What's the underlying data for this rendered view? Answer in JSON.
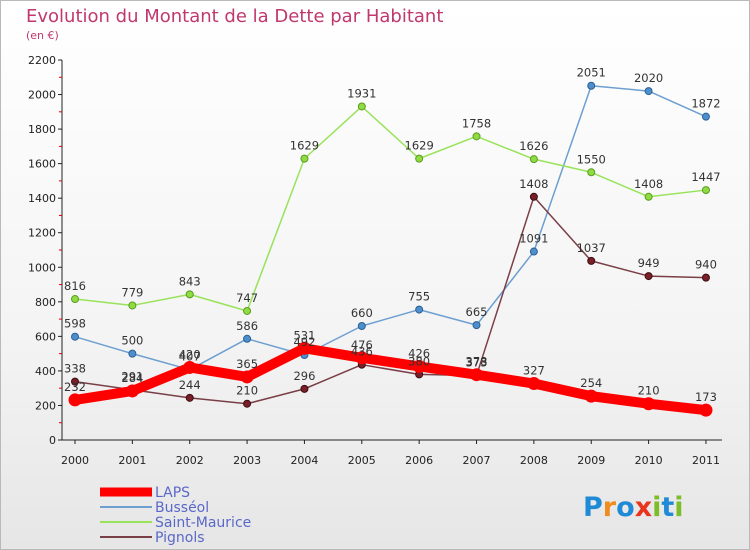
{
  "chart_data": {
    "type": "line",
    "title": "Evolution du Montant de la Dette par Habitant",
    "subtitle": "(en €)",
    "x": [
      "2000",
      "2001",
      "2002",
      "2003",
      "2004",
      "2005",
      "2006",
      "2007",
      "2008",
      "2009",
      "2010",
      "2011"
    ],
    "ylim": [
      0,
      2200
    ],
    "yticks": [
      0,
      200,
      400,
      600,
      800,
      1000,
      1200,
      1400,
      1600,
      1800,
      2000,
      2200
    ],
    "grid": false,
    "legend_position": "bottom-left",
    "series": [
      {
        "name": "LAPS",
        "color": "#ff0000",
        "values": [
          232,
          284,
          420,
          365,
          531,
          476,
          426,
          378,
          327,
          254,
          210,
          173
        ]
      },
      {
        "name": "Busséol",
        "color": "#4d8fcc",
        "values": [
          598,
          500,
          407,
          586,
          492,
          660,
          755,
          665,
          1091,
          2051,
          2020,
          1872
        ]
      },
      {
        "name": "Saint-Maurice",
        "color": "#8edb44",
        "values": [
          816,
          779,
          843,
          747,
          1629,
          1931,
          1629,
          1758,
          1626,
          1550,
          1408,
          1447
        ]
      },
      {
        "name": "Pignols",
        "color": "#7a1f28",
        "values": [
          338,
          291,
          244,
          210,
          296,
          436,
          380,
          373,
          1408,
          1037,
          949,
          940
        ]
      }
    ]
  },
  "brand": {
    "logo_text": "Proxiti"
  }
}
